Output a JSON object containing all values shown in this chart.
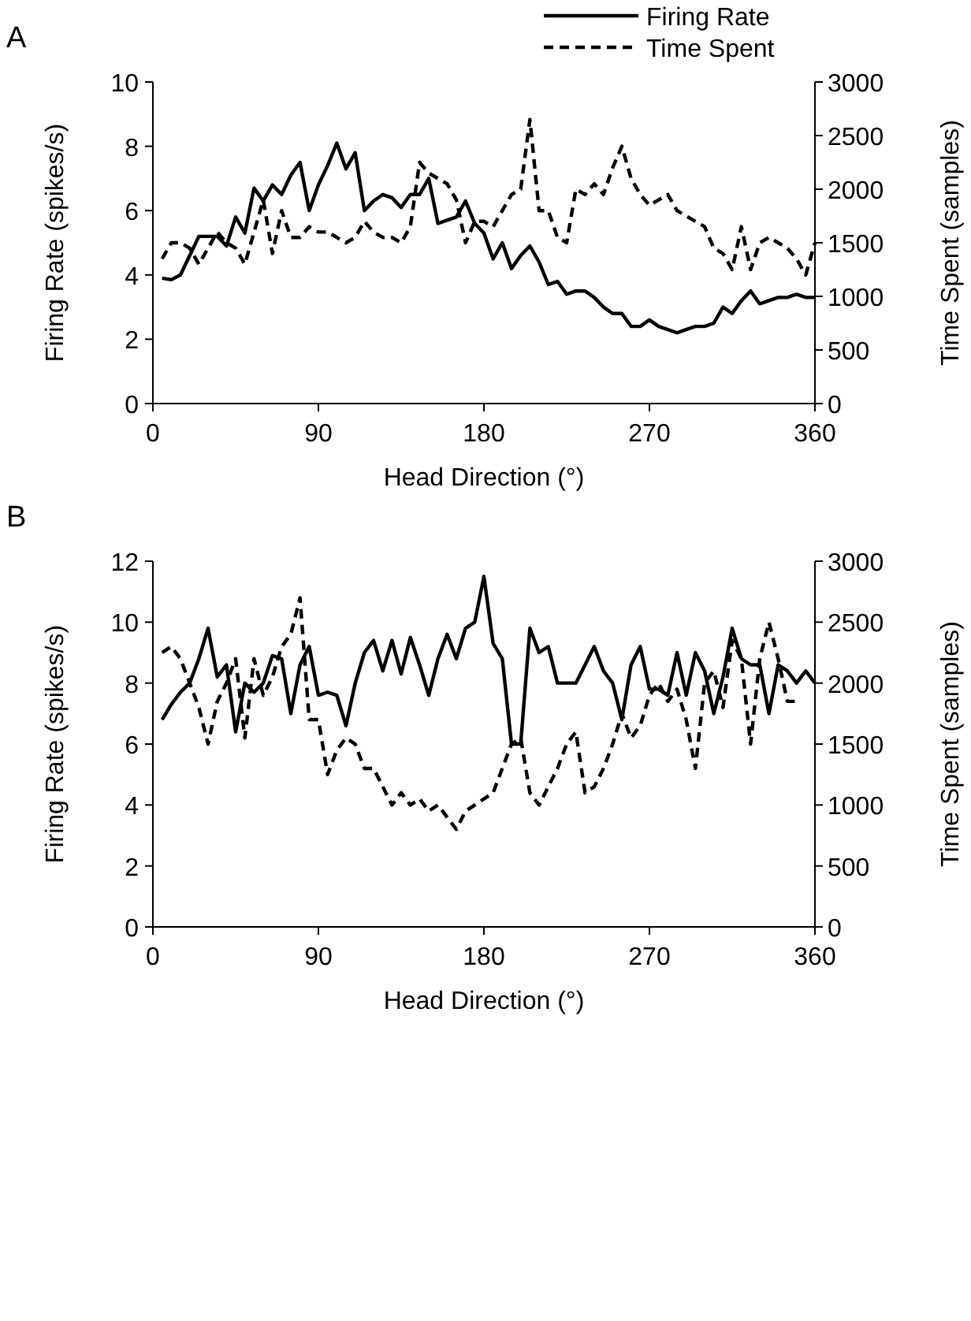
{
  "chart_data": [
    {
      "type": "line",
      "title": "A",
      "xlabel": "Head Direction (°)",
      "ylabel": "Firing Rate (spikes/s)",
      "y2label": "Time Spent (samples)",
      "legend": "top right",
      "grid": false,
      "x": [
        5,
        10,
        15,
        20,
        25,
        30,
        35,
        40,
        45,
        50,
        55,
        60,
        65,
        70,
        75,
        80,
        85,
        90,
        95,
        100,
        105,
        110,
        115,
        120,
        125,
        130,
        135,
        140,
        145,
        150,
        155,
        160,
        165,
        170,
        175,
        180,
        185,
        190,
        195,
        200,
        205,
        210,
        215,
        220,
        225,
        230,
        235,
        240,
        245,
        250,
        255,
        260,
        265,
        270,
        275,
        280,
        285,
        290,
        295,
        300,
        305,
        310,
        315,
        320,
        325,
        330,
        335,
        340,
        345,
        350,
        355,
        360
      ],
      "xlim": [
        0,
        360
      ],
      "xticks": [
        0,
        90,
        180,
        270,
        360
      ],
      "ylim": [
        0,
        10
      ],
      "yticks": [
        0,
        2,
        4,
        6,
        8,
        10
      ],
      "y2lim": [
        0,
        3000
      ],
      "y2ticks": [
        0,
        500,
        1000,
        1500,
        2000,
        2500,
        3000
      ],
      "series": [
        {
          "name": "Firing Rate",
          "color": "#000000",
          "line_style": "solid",
          "values": [
            3.9,
            3.85,
            4.0,
            4.6,
            5.2,
            5.2,
            5.2,
            4.9,
            5.8,
            5.3,
            6.7,
            6.3,
            6.8,
            6.5,
            7.1,
            7.5,
            6.0,
            6.8,
            7.4,
            8.1,
            7.3,
            7.8,
            6.0,
            6.3,
            6.5,
            6.4,
            6.1,
            6.5,
            6.5,
            7.0,
            5.6,
            5.7,
            5.8,
            6.3,
            5.6,
            5.3,
            4.5,
            5.0,
            4.2,
            4.6,
            4.9,
            4.4,
            3.7,
            3.8,
            3.4,
            3.5,
            3.5,
            3.3,
            3.0,
            2.8,
            2.8,
            2.4,
            2.4,
            2.6,
            2.4,
            2.3,
            2.2,
            2.3,
            2.4,
            2.4,
            2.5,
            3.0,
            2.8,
            3.2,
            3.5,
            3.1,
            3.2,
            3.3,
            3.3,
            3.4,
            3.3,
            3.3
          ]
        },
        {
          "name": "Time Spent",
          "color": "#000000",
          "line_style": "dashed",
          "axis": "y2",
          "values": [
            1350,
            1500,
            1500,
            1450,
            1300,
            1450,
            1600,
            1500,
            1450,
            1300,
            1600,
            1900,
            1400,
            1800,
            1550,
            1550,
            1650,
            1600,
            1600,
            1550,
            1500,
            1550,
            1700,
            1600,
            1550,
            1550,
            1500,
            1650,
            2250,
            2150,
            2100,
            2050,
            1900,
            1500,
            1700,
            1700,
            1650,
            1800,
            1950,
            2000,
            2650,
            1800,
            1800,
            1550,
            1500,
            2000,
            1950,
            2050,
            1950,
            2200,
            2400,
            2100,
            1950,
            1850,
            1900,
            1950,
            1800,
            1750,
            1700,
            1650,
            1450,
            1400,
            1250,
            1650,
            1250,
            1500,
            1550,
            1500,
            1450,
            1350,
            1200,
            1500
          ]
        }
      ]
    },
    {
      "type": "line",
      "title": "B",
      "xlabel": "Head Direction (°)",
      "ylabel": "Firing Rate (spikes/s)",
      "y2label": "Time Spent (samples)",
      "grid": false,
      "x": [
        5,
        10,
        15,
        20,
        25,
        30,
        35,
        40,
        45,
        50,
        55,
        60,
        65,
        70,
        75,
        80,
        85,
        90,
        95,
        100,
        105,
        110,
        115,
        120,
        125,
        130,
        135,
        140,
        145,
        150,
        155,
        160,
        165,
        170,
        175,
        180,
        185,
        190,
        195,
        200,
        205,
        210,
        215,
        220,
        225,
        230,
        235,
        240,
        245,
        250,
        255,
        260,
        265,
        270,
        275,
        280,
        285,
        290,
        295,
        300,
        305,
        310,
        315,
        320,
        325,
        330,
        335,
        340,
        345,
        350,
        355,
        360
      ],
      "xlim": [
        0,
        360
      ],
      "xticks": [
        0,
        90,
        180,
        270,
        360
      ],
      "ylim": [
        0,
        12
      ],
      "yticks": [
        0,
        2,
        4,
        6,
        8,
        10,
        12
      ],
      "y2lim": [
        0,
        3000
      ],
      "y2ticks": [
        0,
        500,
        1000,
        1500,
        2000,
        2500,
        3000
      ],
      "series": [
        {
          "color": "#000000",
          "line_style": "solid",
          "values": [
            6.8,
            7.3,
            7.7,
            8.0,
            8.8,
            9.8,
            8.2,
            8.6,
            6.4,
            8.0,
            7.7,
            8.0,
            8.9,
            8.8,
            7.0,
            8.6,
            9.2,
            7.6,
            7.7,
            7.6,
            6.6,
            8.0,
            9.0,
            9.4,
            8.4,
            9.4,
            8.3,
            9.5,
            8.6,
            7.6,
            8.8,
            9.6,
            8.8,
            9.8,
            10.0,
            11.5,
            9.3,
            8.8,
            6.0,
            6.0,
            9.8,
            9.0,
            9.2,
            8.0,
            8.0,
            8.0,
            8.6,
            9.2,
            8.4,
            8.0,
            6.8,
            8.6,
            9.2,
            7.8,
            7.8,
            7.6,
            9.0,
            7.6,
            9.0,
            8.4,
            7.0,
            8.2,
            9.8,
            8.8,
            8.6,
            8.6,
            7.0,
            8.6,
            8.4,
            8.0,
            8.4,
            8.0
          ]
        },
        {
          "color": "#000000",
          "line_style": "dashed",
          "axis": "y2",
          "values": [
            2250,
            2300,
            2200,
            2000,
            1800,
            1500,
            1850,
            2000,
            2200,
            1550,
            2200,
            1900,
            2050,
            2300,
            2400,
            2700,
            1700,
            1700,
            1250,
            1450,
            1550,
            1500,
            1300,
            1300,
            1150,
            1000,
            1100,
            1000,
            1050,
            950,
            1000,
            900,
            800,
            950,
            1000,
            1050,
            1100,
            1300,
            1500,
            1550,
            1100,
            1000,
            1150,
            1300,
            1500,
            1600,
            1100,
            1150,
            1300,
            1500,
            1750,
            1550,
            1650,
            1900,
            2000,
            1850,
            1950,
            1700,
            1300,
            2000,
            2100,
            1800,
            2350,
            2200,
            1500,
            2200,
            2500,
            2200,
            1850,
            1850,
            null,
            null
          ]
        }
      ]
    }
  ]
}
